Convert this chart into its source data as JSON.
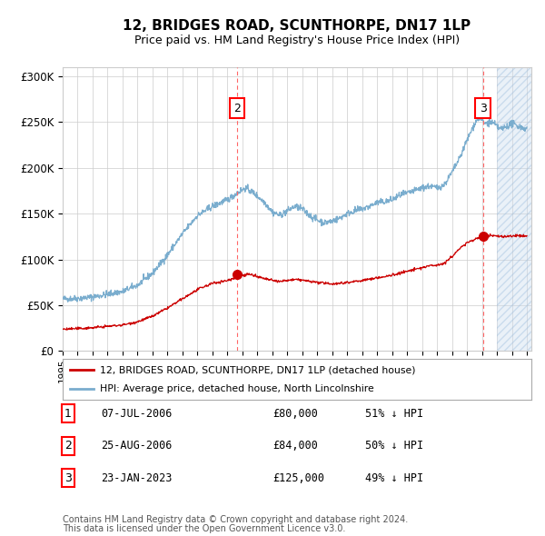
{
  "title": "12, BRIDGES ROAD, SCUNTHORPE, DN17 1LP",
  "subtitle": "Price paid vs. HM Land Registry's House Price Index (HPI)",
  "xlim_start": 1995.0,
  "xlim_end": 2026.0,
  "ylim": [
    0,
    310000
  ],
  "yticks": [
    0,
    50000,
    100000,
    150000,
    200000,
    250000,
    300000
  ],
  "ytick_labels": [
    "£0",
    "£50K",
    "£100K",
    "£150K",
    "£200K",
    "£250K",
    "£300K"
  ],
  "sale1_x": 2006.52,
  "sale2_x": 2006.65,
  "sale3_x": 2023.07,
  "sale1_price": 80000,
  "sale2_price": 84000,
  "sale3_price": 125000,
  "red_line_color": "#cc0000",
  "blue_line_color": "#7aadce",
  "hatch_start": 2024.0,
  "hatch_color": "#ccdcee",
  "legend_label_red": "12, BRIDGES ROAD, SCUNTHORPE, DN17 1LP (detached house)",
  "legend_label_blue": "HPI: Average price, detached house, North Lincolnshire",
  "table_rows": [
    [
      "1",
      "07-JUL-2006",
      "£80,000",
      "51% ↓ HPI"
    ],
    [
      "2",
      "25-AUG-2006",
      "£84,000",
      "50% ↓ HPI"
    ],
    [
      "3",
      "23-JAN-2023",
      "£125,000",
      "49% ↓ HPI"
    ]
  ],
  "footnote1": "Contains HM Land Registry data © Crown copyright and database right 2024.",
  "footnote2": "This data is licensed under the Open Government Licence v3.0.",
  "bg_color": "#ffffff",
  "grid_color": "#cccccc"
}
